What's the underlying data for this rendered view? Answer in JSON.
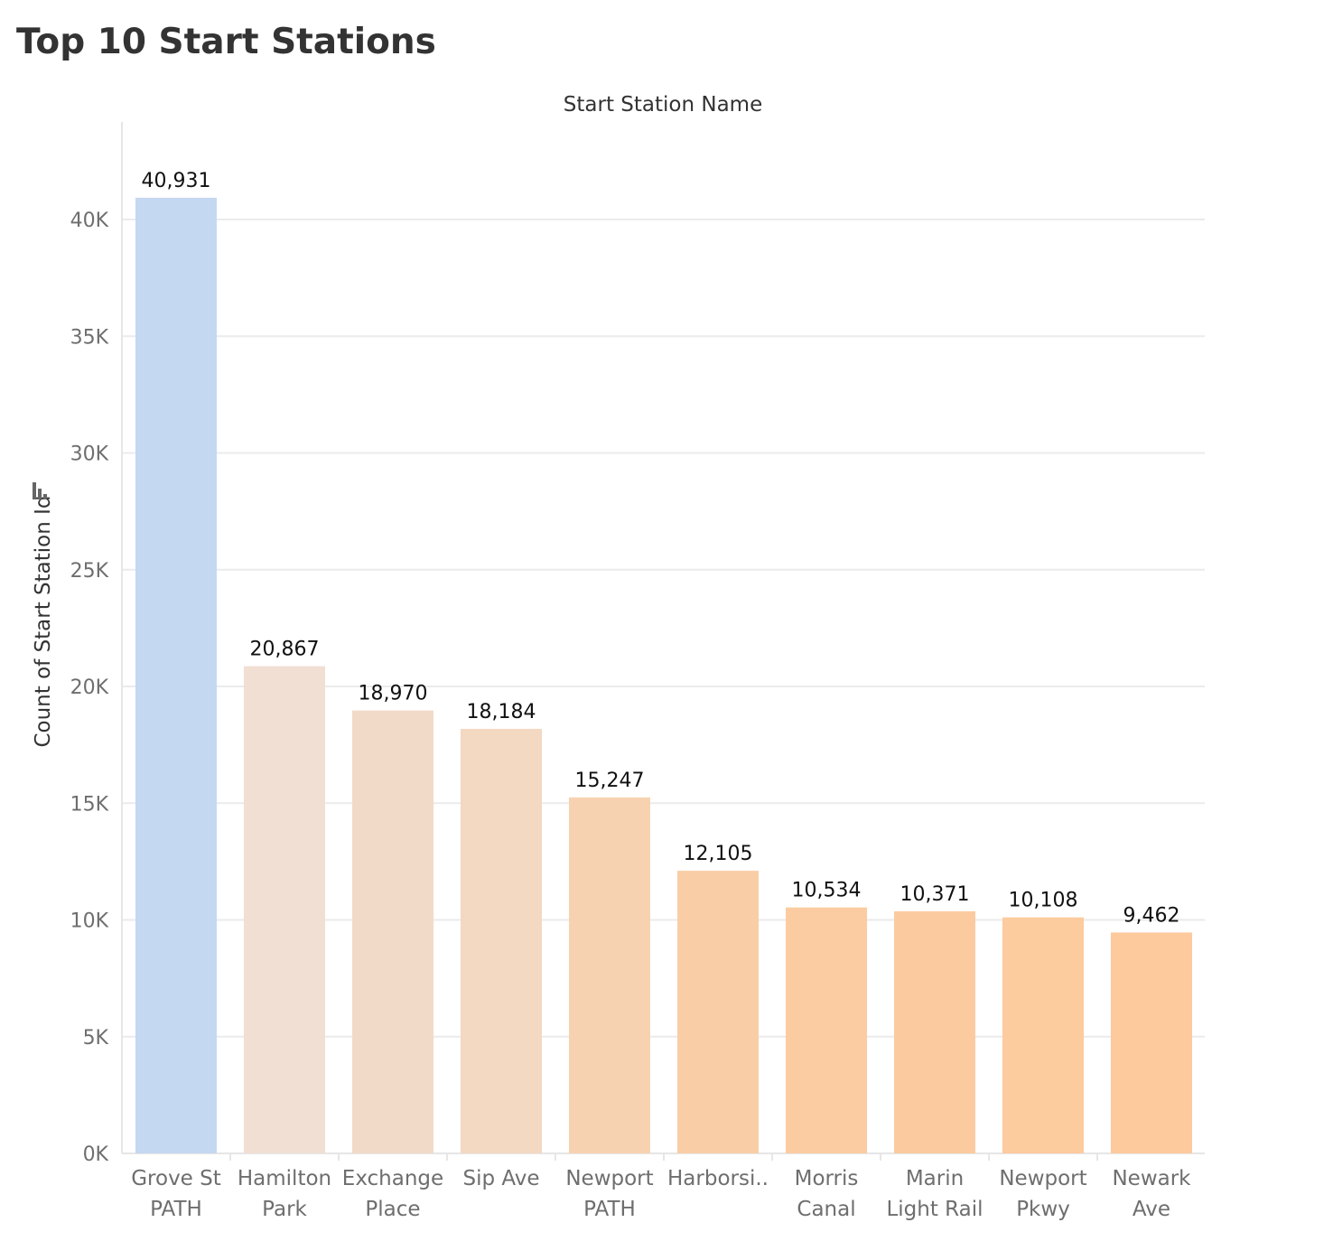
{
  "page": {
    "title": "Top 10 Start Stations"
  },
  "chart_data": {
    "type": "bar",
    "title": "Top 10 Start Stations",
    "xlabel": "Start Station Name",
    "ylabel": "Count of Start Station Id",
    "categories": [
      [
        "Grove St",
        "PATH"
      ],
      [
        "Hamilton",
        "Park"
      ],
      [
        "Exchange",
        "Place"
      ],
      [
        "Sip Ave"
      ],
      [
        "Newport",
        "PATH"
      ],
      [
        "Harborsi.."
      ],
      [
        "Morris",
        "Canal"
      ],
      [
        "Marin",
        "Light Rail"
      ],
      [
        "Newport",
        "Pkwy"
      ],
      [
        "Newark",
        "Ave"
      ]
    ],
    "values": [
      40931,
      20867,
      18970,
      18184,
      15247,
      12105,
      10534,
      10371,
      10108,
      9462
    ],
    "value_labels": [
      "40,931",
      "20,867",
      "18,970",
      "18,184",
      "15,247",
      "12,105",
      "10,534",
      "10,371",
      "10,108",
      "9,462"
    ],
    "colors": [
      "#c5d8f1",
      "#f1dfd4",
      "#f1dac8",
      "#f3d8c2",
      "#f7d2b1",
      "#f9cea7",
      "#fbcca1",
      "#fbcb9f",
      "#fccb9e",
      "#fdca9d"
    ],
    "ylim": [
      0,
      43500
    ],
    "yticks": [
      0,
      5000,
      10000,
      15000,
      20000,
      25000,
      30000,
      35000,
      40000
    ],
    "ytick_labels": [
      "0K",
      "5K",
      "10K",
      "15K",
      "20K",
      "25K",
      "30K",
      "35K",
      "40K"
    ],
    "grid": true,
    "legend": "none",
    "sort_icon": "sort-descending-icon"
  }
}
